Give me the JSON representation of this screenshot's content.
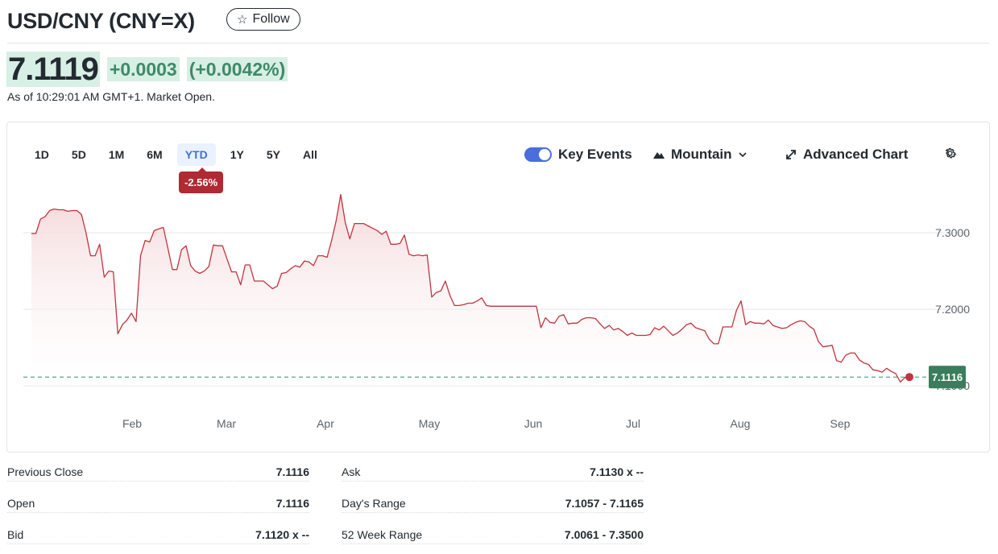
{
  "header": {
    "title": "USD/CNY (CNY=X)",
    "follow_label": "Follow"
  },
  "quote": {
    "price": "7.1119",
    "change": "+0.0003",
    "change_pct": "(+0.0042%)",
    "as_of": "As of 10:29:01 AM GMT+1. Market Open."
  },
  "chart": {
    "ranges": [
      "1D",
      "5D",
      "1M",
      "6M",
      "YTD",
      "1Y",
      "5Y",
      "All"
    ],
    "active_range": "YTD",
    "period_change": "-2.56%",
    "key_events_label": "Key Events",
    "key_events_enabled": true,
    "chart_type_label": "Mountain",
    "advanced_label": "Advanced Chart"
  },
  "chart_data": {
    "type": "area",
    "title": "",
    "xlabel": "",
    "ylabel": "",
    "x_tick_labels": [
      "Feb",
      "Mar",
      "Apr",
      "May",
      "Jun",
      "Jul",
      "Aug",
      "Sep"
    ],
    "y_tick_labels": [
      "7.3000",
      "7.2000",
      "7.1000"
    ],
    "ylim": [
      7.095,
      7.36
    ],
    "reference_line": 7.1116,
    "last_price_label": "7.1116",
    "colors": {
      "line": "#c0343f",
      "fill_top": "#f4d6d8",
      "reference": "#3e8a68",
      "last_badge": "#3a7d5c"
    },
    "series": [
      {
        "values": [
          7.299,
          7.299,
          7.318,
          7.321,
          7.329,
          7.331,
          7.33,
          7.33,
          7.328,
          7.329,
          7.329,
          7.324,
          7.3,
          7.27,
          7.27,
          7.285,
          7.242,
          7.25,
          7.249,
          7.168,
          7.18,
          7.186,
          7.195,
          7.184,
          7.27,
          7.29,
          7.288,
          7.303,
          7.305,
          7.307,
          7.28,
          7.252,
          7.252,
          7.278,
          7.283,
          7.257,
          7.25,
          7.247,
          7.25,
          7.256,
          7.284,
          7.283,
          7.283,
          7.266,
          7.249,
          7.249,
          7.232,
          7.258,
          7.258,
          7.237,
          7.237,
          7.237,
          7.232,
          7.227,
          7.23,
          7.247,
          7.248,
          7.253,
          7.257,
          7.255,
          7.263,
          7.262,
          7.257,
          7.27,
          7.27,
          7.268,
          7.29,
          7.316,
          7.35,
          7.313,
          7.292,
          7.312,
          7.312,
          7.312,
          7.309,
          7.306,
          7.303,
          7.298,
          7.302,
          7.285,
          7.285,
          7.286,
          7.297,
          7.272,
          7.27,
          7.271,
          7.27,
          7.271,
          7.216,
          7.222,
          7.224,
          7.237,
          7.218,
          7.205,
          7.205,
          7.206,
          7.208,
          7.208,
          7.211,
          7.215,
          7.205,
          7.204,
          7.204,
          7.204,
          7.204,
          7.204,
          7.204,
          7.204,
          7.204,
          7.204,
          7.204,
          7.204,
          7.176,
          7.189,
          7.183,
          7.182,
          7.191,
          7.193,
          7.181,
          7.182,
          7.182,
          7.187,
          7.189,
          7.189,
          7.188,
          7.181,
          7.175,
          7.179,
          7.173,
          7.175,
          7.171,
          7.166,
          7.169,
          7.166,
          7.166,
          7.166,
          7.167,
          7.176,
          7.173,
          7.178,
          7.172,
          7.166,
          7.169,
          7.174,
          7.18,
          7.182,
          7.176,
          7.174,
          7.172,
          7.161,
          7.155,
          7.155,
          7.177,
          7.177,
          7.177,
          7.199,
          7.211,
          7.18,
          7.184,
          7.182,
          7.182,
          7.181,
          7.186,
          7.179,
          7.177,
          7.175,
          7.176,
          7.18,
          7.183,
          7.185,
          7.184,
          7.178,
          7.174,
          7.158,
          7.151,
          7.152,
          7.153,
          7.133,
          7.131,
          7.14,
          7.143,
          7.143,
          7.134,
          7.13,
          7.128,
          7.121,
          7.12,
          7.118,
          7.123,
          7.119,
          7.116,
          7.105,
          7.111,
          7.1116
        ]
      }
    ],
    "grid": true,
    "y_axis_side": "right"
  },
  "stats": {
    "left": [
      {
        "label": "Previous Close",
        "value": "7.1116"
      },
      {
        "label": "Open",
        "value": "7.1116"
      },
      {
        "label": "Bid",
        "value": "7.1120 x --"
      }
    ],
    "right": [
      {
        "label": "Ask",
        "value": "7.1130 x --"
      },
      {
        "label": "Day's Range",
        "value": "7.1057 - 7.1165"
      },
      {
        "label": "52 Week Range",
        "value": "7.0061 - 7.3500"
      }
    ]
  }
}
